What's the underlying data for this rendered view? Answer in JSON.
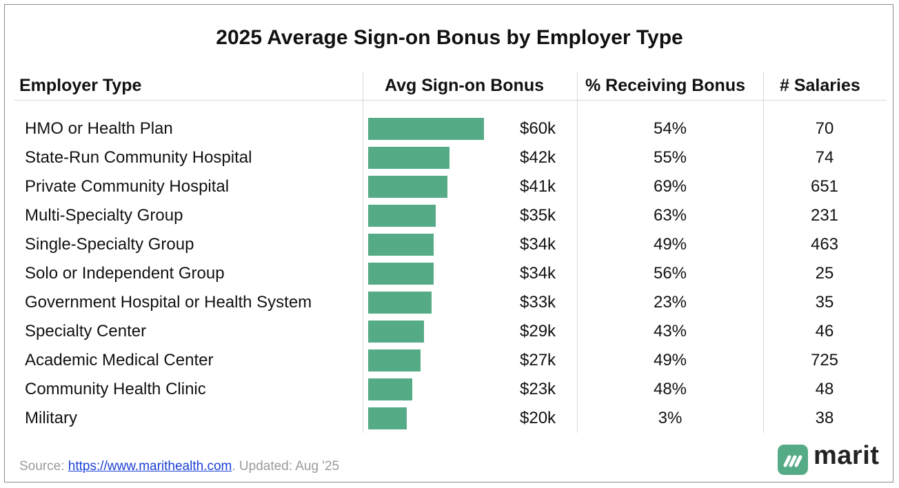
{
  "chart_data": {
    "type": "table",
    "title": "2025 Average Sign-on Bonus by Employer Type",
    "columns": [
      "Employer Type",
      "Avg Sign-on Bonus",
      "% Receiving Bonus",
      "# Salaries"
    ],
    "bar_color": "#56ab87",
    "rows": [
      {
        "employer": "HMO or Health Plan",
        "bonus": 60,
        "bonus_label": "$60k",
        "pct": "54%",
        "salaries": "70"
      },
      {
        "employer": "State-Run Community Hospital",
        "bonus": 42,
        "bonus_label": "$42k",
        "pct": "55%",
        "salaries": "74"
      },
      {
        "employer": "Private Community Hospital",
        "bonus": 41,
        "bonus_label": "$41k",
        "pct": "69%",
        "salaries": "651"
      },
      {
        "employer": "Multi-Specialty Group",
        "bonus": 35,
        "bonus_label": "$35k",
        "pct": "63%",
        "salaries": "231"
      },
      {
        "employer": "Single-Specialty Group",
        "bonus": 34,
        "bonus_label": "$34k",
        "pct": "49%",
        "salaries": "463"
      },
      {
        "employer": "Solo or Independent Group",
        "bonus": 34,
        "bonus_label": "$34k",
        "pct": "56%",
        "salaries": "25"
      },
      {
        "employer": "Government Hospital or Health System",
        "bonus": 33,
        "bonus_label": "$33k",
        "pct": "23%",
        "salaries": "35"
      },
      {
        "employer": "Specialty Center",
        "bonus": 29,
        "bonus_label": "$29k",
        "pct": "43%",
        "salaries": "46"
      },
      {
        "employer": "Academic Medical Center",
        "bonus": 27,
        "bonus_label": "$27k",
        "pct": "49%",
        "salaries": "725"
      },
      {
        "employer": "Community Health Clinic",
        "bonus": 23,
        "bonus_label": "$23k",
        "pct": "48%",
        "salaries": "48"
      },
      {
        "employer": "Military",
        "bonus": 20,
        "bonus_label": "$20k",
        "pct": "3%",
        "salaries": "38"
      }
    ]
  },
  "footer": {
    "source_prefix": "Source: ",
    "source_link": "https://www.marithealth.com",
    "source_suffix": ". Updated: Aug '25"
  },
  "logo": {
    "text": "marit",
    "icon": "marit-logo-icon",
    "color": "#56ab87"
  }
}
